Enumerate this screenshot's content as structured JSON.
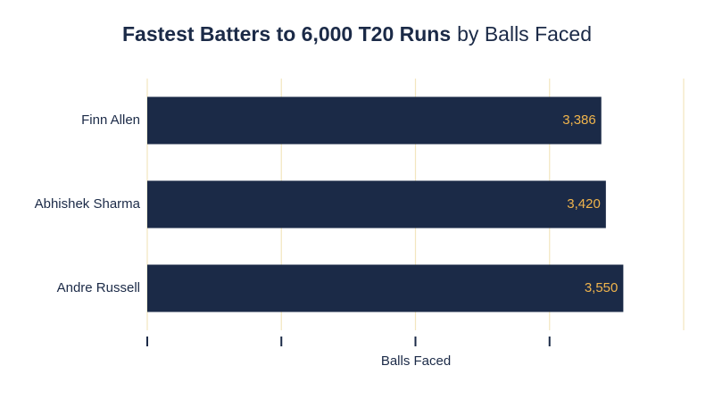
{
  "chart_data": {
    "type": "bar",
    "orientation": "horizontal",
    "title": [
      "Fastest Batters to 6,000 T20 Runs",
      "by Balls Faced"
    ],
    "xlabel": "Balls Faced",
    "categories": [
      "Finn Allen",
      "Abhishek Sharma",
      "Andre Russell"
    ],
    "values": [
      3386,
      3420,
      3550
    ],
    "value_labels": [
      "3,386",
      "3,420",
      "3,550"
    ],
    "color": "#1b2a47",
    "label_color": "#f0b44c",
    "grid_color": "#f3e6bf",
    "xlim": [
      0,
      4000
    ],
    "xticks": [
      0,
      1000,
      2000,
      3000
    ],
    "grid": true
  }
}
